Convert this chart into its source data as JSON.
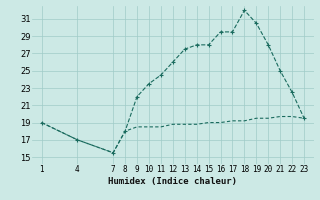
{
  "title": "",
  "xlabel": "Humidex (Indice chaleur)",
  "ylabel": "",
  "bg_color": "#cce9e5",
  "grid_color": "#a0ccc8",
  "line_color": "#1a6b5e",
  "x_ticks": [
    1,
    4,
    7,
    8,
    9,
    10,
    11,
    12,
    13,
    14,
    15,
    16,
    17,
    18,
    19,
    20,
    21,
    22,
    23
  ],
  "y_ticks": [
    15,
    17,
    19,
    21,
    23,
    25,
    27,
    29,
    31
  ],
  "ylim": [
    14.2,
    32.5
  ],
  "xlim": [
    0.2,
    23.8
  ],
  "series1_x": [
    1,
    4,
    7,
    8,
    9,
    10,
    11,
    12,
    13,
    14,
    15,
    16,
    17,
    18,
    19,
    20,
    21,
    22,
    23
  ],
  "series1_y": [
    19.0,
    17.0,
    15.5,
    18.0,
    22.0,
    23.5,
    24.5,
    26.0,
    27.5,
    28.0,
    28.0,
    29.5,
    29.5,
    32.0,
    30.5,
    28.0,
    25.0,
    22.5,
    19.5
  ],
  "series2_x": [
    1,
    4,
    7,
    8,
    9,
    10,
    11,
    12,
    13,
    14,
    15,
    16,
    17,
    18,
    19,
    20,
    21,
    22,
    23
  ],
  "series2_y": [
    19.0,
    17.0,
    15.5,
    18.0,
    18.5,
    18.5,
    18.5,
    18.8,
    18.8,
    18.8,
    19.0,
    19.0,
    19.2,
    19.2,
    19.5,
    19.5,
    19.7,
    19.7,
    19.5
  ],
  "tick_fontsize": 5.5,
  "xlabel_fontsize": 6.5,
  "marker_size": 3.5,
  "linewidth": 0.8
}
